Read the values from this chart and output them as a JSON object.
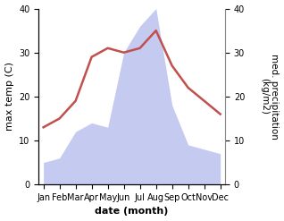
{
  "months": [
    "Jan",
    "Feb",
    "Mar",
    "Apr",
    "May",
    "Jun",
    "Jul",
    "Aug",
    "Sep",
    "Oct",
    "Nov",
    "Dec"
  ],
  "temp": [
    13,
    15,
    19,
    29,
    31,
    30,
    31,
    35,
    27,
    22,
    19,
    16
  ],
  "precip": [
    5,
    6,
    12,
    14,
    13,
    30,
    36,
    40,
    18,
    9,
    8,
    7
  ],
  "temp_color": "#c0504d",
  "precip_fill_color": "#c5caf0",
  "xlabel": "date (month)",
  "ylabel_left": "max temp (C)",
  "ylabel_right": "med. precipitation\n(kg/m2)",
  "ylim_left": [
    0,
    40
  ],
  "ylim_right": [
    0,
    40
  ]
}
